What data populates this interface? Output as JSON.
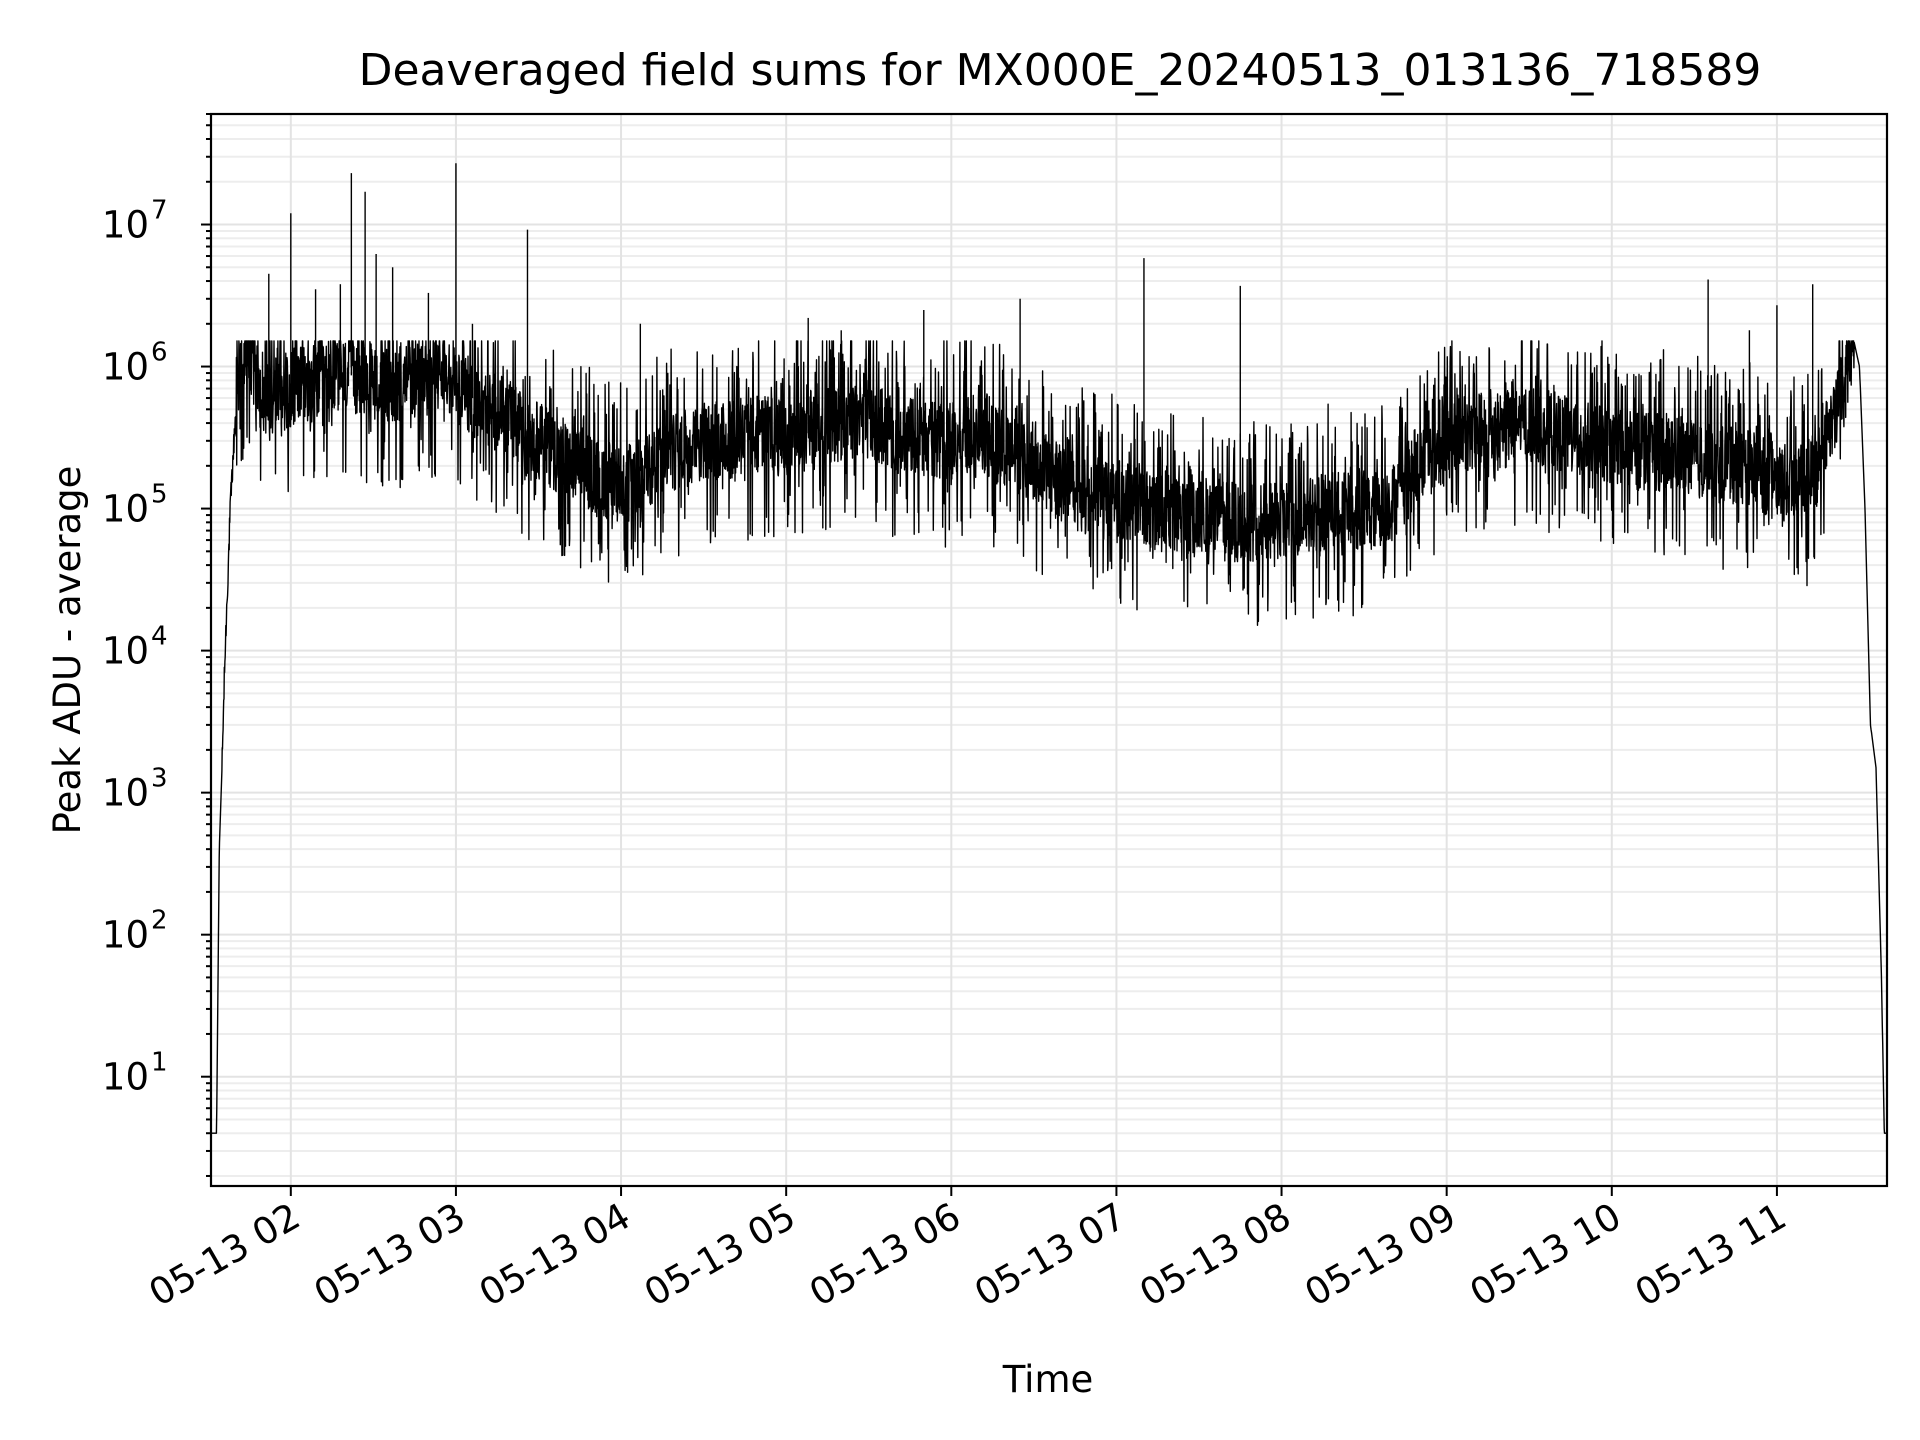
{
  "chart_data": {
    "type": "line",
    "title": "Deaveraged field sums for MX000E_20240513_013136_718589",
    "xlabel": "Time",
    "ylabel": "Peak ADU - average",
    "yscale": "log",
    "grid": true,
    "xlim": [
      "2024-05-13 01:31",
      "2024-05-13 11:40"
    ],
    "ylim": [
      1.7,
      60000000
    ],
    "x_tick_labels": [
      "05-13 02",
      "05-13 03",
      "05-13 04",
      "05-13 05",
      "05-13 06",
      "05-13 07",
      "05-13 08",
      "05-13 09",
      "05-13 10",
      "05-13 11"
    ],
    "y_ticks": [
      {
        "base": "10",
        "exp": "1"
      },
      {
        "base": "10",
        "exp": "2"
      },
      {
        "base": "10",
        "exp": "3"
      },
      {
        "base": "10",
        "exp": "4"
      },
      {
        "base": "10",
        "exp": "5"
      },
      {
        "base": "10",
        "exp": "6"
      },
      {
        "base": "10",
        "exp": "7"
      }
    ],
    "series": [
      {
        "color": "#000000",
        "x": [
          "01:31",
          "01:32",
          "01:33",
          "01:34",
          "01:35",
          "01:36",
          "01:38",
          "01:40",
          "01:42",
          "01:45",
          "01:48",
          "01:52",
          "01:56",
          "02:00",
          "02:06",
          "02:12",
          "02:18",
          "02:24",
          "02:30",
          "02:36",
          "02:42",
          "02:48",
          "02:54",
          "03:00",
          "03:06",
          "03:12",
          "03:18",
          "03:24",
          "03:30",
          "03:36",
          "03:42",
          "03:48",
          "03:54",
          "04:00",
          "04:10",
          "04:20",
          "04:30",
          "04:40",
          "04:50",
          "05:00",
          "05:10",
          "05:20",
          "05:30",
          "05:40",
          "05:50",
          "06:00",
          "06:10",
          "06:20",
          "06:30",
          "06:40",
          "06:50",
          "07:00",
          "07:10",
          "07:20",
          "07:30",
          "07:40",
          "07:50",
          "08:00",
          "08:10",
          "08:20",
          "08:30",
          "08:40",
          "08:50",
          "09:00",
          "09:10",
          "09:20",
          "09:30",
          "09:40",
          "09:50",
          "10:00",
          "10:10",
          "10:20",
          "10:30",
          "10:40",
          "10:50",
          "11:00",
          "11:10",
          "11:15",
          "11:20",
          "11:25",
          "11:28",
          "11:30",
          "11:32",
          "11:34",
          "11:36",
          "11:38",
          "11:39",
          "11:40"
        ],
        "y": [
          4,
          4,
          4,
          400,
          1500,
          8000,
          100000,
          500000,
          1200000,
          1300000,
          700000,
          600000,
          650000,
          700000,
          750000,
          800000,
          900000,
          850000,
          800000,
          750000,
          800000,
          850000,
          800000,
          750000,
          600000,
          500000,
          450000,
          350000,
          300000,
          250000,
          200000,
          180000,
          160000,
          150000,
          200000,
          250000,
          300000,
          300000,
          350000,
          300000,
          350000,
          400000,
          400000,
          350000,
          300000,
          300000,
          350000,
          250000,
          200000,
          150000,
          120000,
          120000,
          100000,
          90000,
          90000,
          85000,
          80000,
          80000,
          90000,
          100000,
          90000,
          110000,
          200000,
          300000,
          350000,
          350000,
          400000,
          350000,
          300000,
          280000,
          250000,
          250000,
          220000,
          200000,
          200000,
          150000,
          150000,
          200000,
          400000,
          1000000,
          1500000,
          1000000,
          100000,
          3000,
          1500,
          50,
          4,
          4
        ],
        "spikes": [
          [
            "01:52",
            4500000
          ],
          [
            "02:00",
            12000000
          ],
          [
            "02:09",
            3500000
          ],
          [
            "02:18",
            3800000
          ],
          [
            "02:22",
            23000000
          ],
          [
            "02:27",
            17000000
          ],
          [
            "02:31",
            6200000
          ],
          [
            "02:37",
            5000000
          ],
          [
            "02:50",
            3300000
          ],
          [
            "03:00",
            27000000
          ],
          [
            "03:06",
            2000000
          ],
          [
            "03:26",
            9200000
          ],
          [
            "04:07",
            2000000
          ],
          [
            "05:08",
            2200000
          ],
          [
            "05:20",
            1800000
          ],
          [
            "05:50",
            2500000
          ],
          [
            "06:25",
            3000000
          ],
          [
            "07:10",
            5800000
          ],
          [
            "07:45",
            3700000
          ],
          [
            "10:35",
            4100000
          ],
          [
            "10:50",
            1800000
          ],
          [
            "11:00",
            2700000
          ],
          [
            "11:13",
            3800000
          ]
        ]
      }
    ]
  }
}
